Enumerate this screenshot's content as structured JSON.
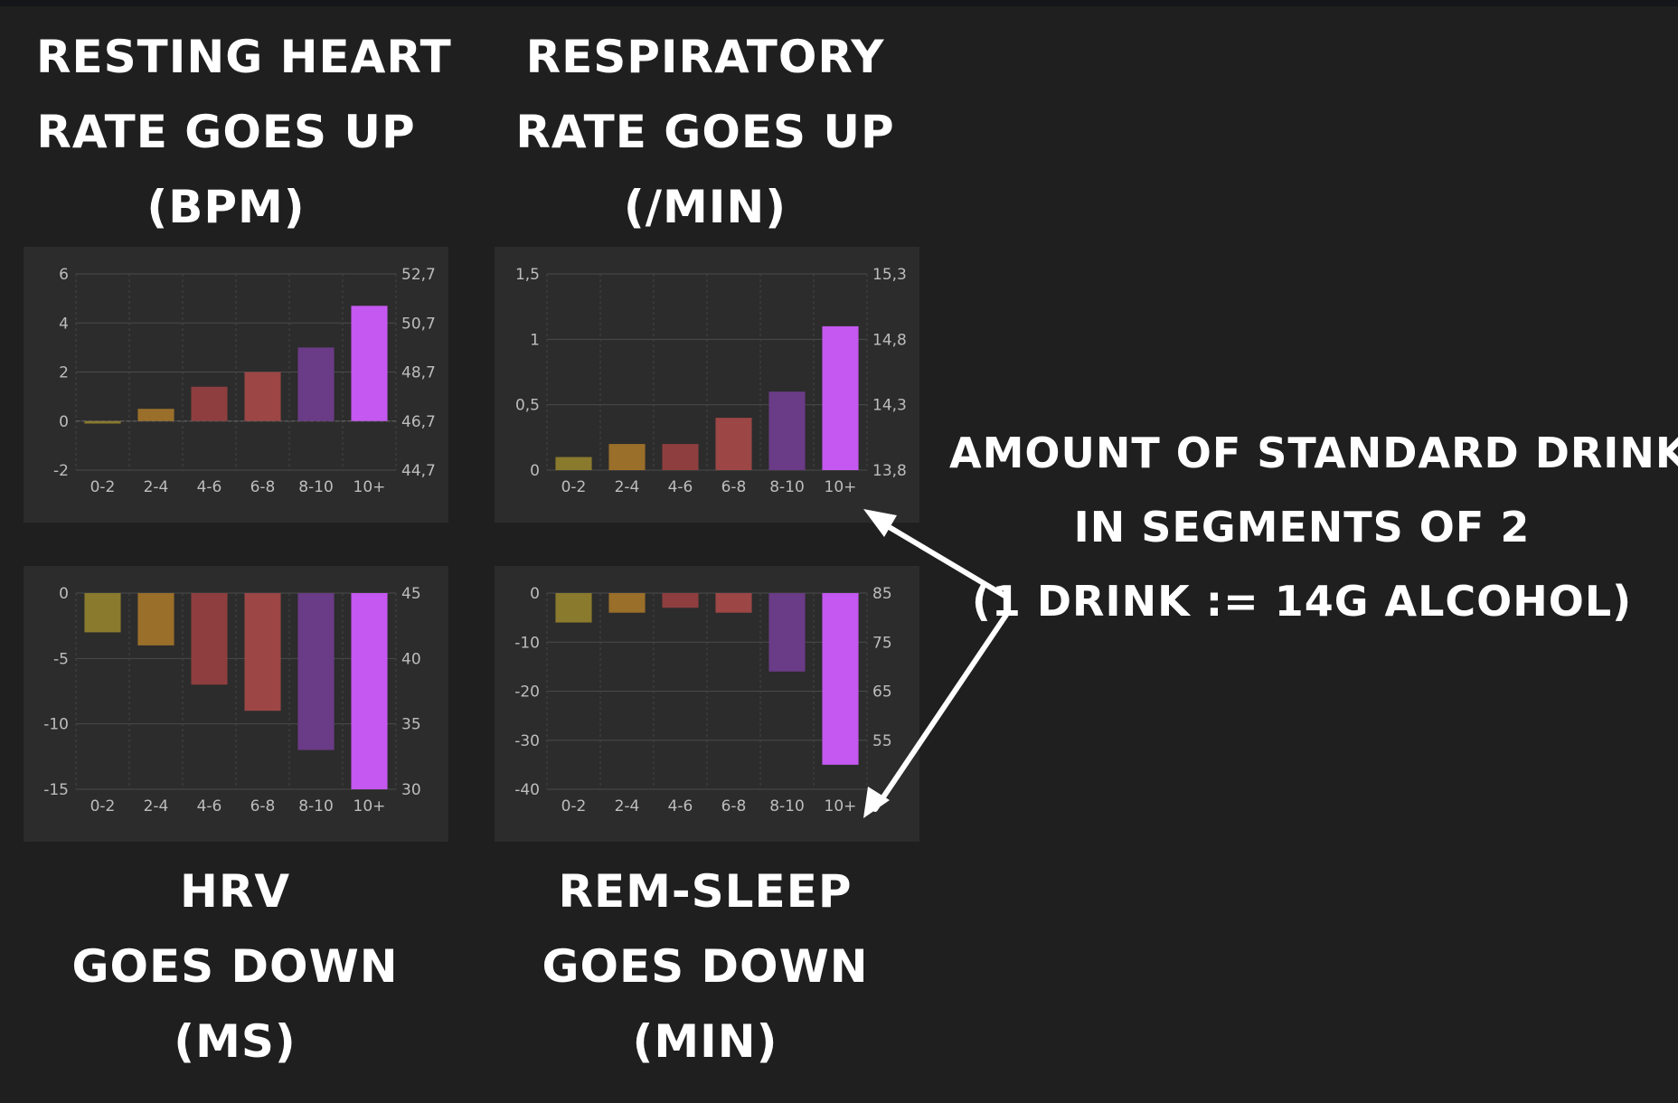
{
  "titles": {
    "rhr": [
      "RESTING HEART",
      "RATE GOES UP",
      "(BPM)"
    ],
    "resp": [
      "RESPIRATORY",
      "RATE GOES UP",
      "(/MIN)"
    ],
    "hrv": [
      "HRV",
      "GOES DOWN",
      "(MS)"
    ],
    "rem": [
      "REM-SLEEP",
      "GOES DOWN",
      "(MIN)"
    ]
  },
  "annotation": [
    "AMOUNT OF STANDARD DRINKS",
    "IN SEGMENTS OF 2",
    "(1 DRINK := 14G ALCOHOL)"
  ],
  "colors": {
    "background": "#1f1f1f",
    "panel": "#2c2c2c",
    "bars": [
      "#8a7a2e",
      "#9a6f2a",
      "#8e3e3e",
      "#9c4646",
      "#6a3b86",
      "#c458f0"
    ]
  },
  "chart_data": [
    {
      "type": "bar",
      "categories": [
        "0-2",
        "2-4",
        "4-6",
        "6-8",
        "8-10",
        "10+"
      ],
      "values": [
        -0.1,
        0.5,
        1.4,
        2.0,
        3.0,
        4.7
      ],
      "ylim": [
        -2,
        6
      ],
      "yticks": [
        "-2",
        "0",
        "2",
        "4",
        "6"
      ],
      "right_ticks": [
        "44,7",
        "46,7",
        "48,7",
        "50,7",
        "52,7"
      ],
      "grid": true
    },
    {
      "type": "bar",
      "categories": [
        "0-2",
        "2-4",
        "4-6",
        "6-8",
        "8-10",
        "10+"
      ],
      "values": [
        0.1,
        0.2,
        0.2,
        0.4,
        0.6,
        1.1
      ],
      "ylim": [
        0,
        1.5
      ],
      "yticks": [
        "0",
        "0,5",
        "1",
        "1,5"
      ],
      "right_ticks": [
        "13,8",
        "14,3",
        "14,8",
        "15,3"
      ],
      "grid": true
    },
    {
      "type": "bar",
      "categories": [
        "0-2",
        "2-4",
        "4-6",
        "6-8",
        "8-10",
        "10+"
      ],
      "values": [
        -3,
        -4,
        -7,
        -9,
        -12,
        -15
      ],
      "ylim": [
        -15,
        0
      ],
      "yticks": [
        "-15",
        "-10",
        "-5",
        "0"
      ],
      "right_ticks": [
        "30",
        "35",
        "40",
        "45"
      ],
      "grid": true
    },
    {
      "type": "bar",
      "categories": [
        "0-2",
        "2-4",
        "4-6",
        "6-8",
        "8-10",
        "10+"
      ],
      "values": [
        -6,
        -4,
        -3,
        -4,
        -16,
        -35
      ],
      "ylim": [
        -40,
        0
      ],
      "yticks": [
        "-40",
        "-30",
        "-20",
        "-10",
        "0"
      ],
      "right_ticks": [
        "55",
        "65",
        "75",
        "85"
      ],
      "grid": true
    }
  ]
}
